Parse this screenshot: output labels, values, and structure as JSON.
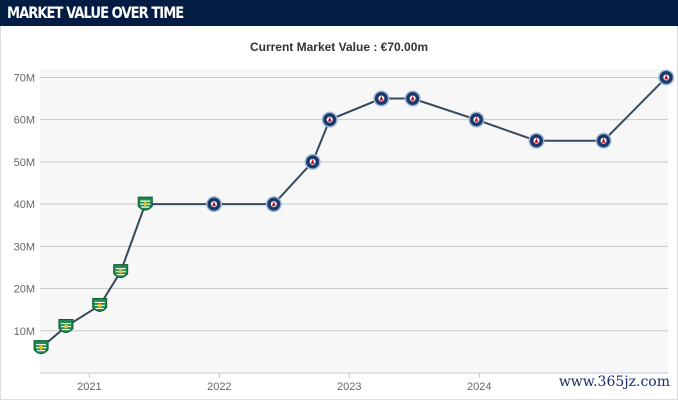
{
  "header": {
    "title": "MARKET VALUE OVER TIME"
  },
  "subtitle": "Current Market Value : €70.00m",
  "watermark": "www.365jz.com",
  "chart_data": {
    "type": "line",
    "title": "Current Market Value : €70.00m",
    "xlabel": "",
    "ylabel": "",
    "x_ticks": [
      "2021",
      "2022",
      "2023",
      "2024"
    ],
    "y_ticks": [
      "10M",
      "20M",
      "30M",
      "40M",
      "50M",
      "60M",
      "70M"
    ],
    "ylim": [
      0,
      72
    ],
    "xlim": [
      "2020-08-15",
      "2025-06-15"
    ],
    "grid": true,
    "line_color": "#34495e",
    "plot_background": "#f7f7f7",
    "club_colors": {
      "sporting": "#1e8a4c",
      "psg": "#1b3a6b"
    },
    "points": [
      {
        "date": "2020-08-18",
        "value": 6,
        "club": "sporting"
      },
      {
        "date": "2020-10-27",
        "value": 11,
        "club": "sporting"
      },
      {
        "date": "2021-01-30",
        "value": 16,
        "club": "sporting"
      },
      {
        "date": "2021-03-30",
        "value": 24,
        "club": "sporting"
      },
      {
        "date": "2021-06-07",
        "value": 40,
        "club": "sporting"
      },
      {
        "date": "2021-12-17",
        "value": 40,
        "club": "psg"
      },
      {
        "date": "2022-06-03",
        "value": 40,
        "club": "psg"
      },
      {
        "date": "2022-09-20",
        "value": 50,
        "club": "psg"
      },
      {
        "date": "2022-11-07",
        "value": 60,
        "club": "psg"
      },
      {
        "date": "2023-04-01",
        "value": 65,
        "club": "psg"
      },
      {
        "date": "2023-06-28",
        "value": 65,
        "club": "psg"
      },
      {
        "date": "2023-12-24",
        "value": 60,
        "club": "psg"
      },
      {
        "date": "2024-06-10",
        "value": 55,
        "club": "psg"
      },
      {
        "date": "2024-12-16",
        "value": 55,
        "club": "psg"
      },
      {
        "date": "2025-06-10",
        "value": 70,
        "club": "psg"
      }
    ]
  }
}
